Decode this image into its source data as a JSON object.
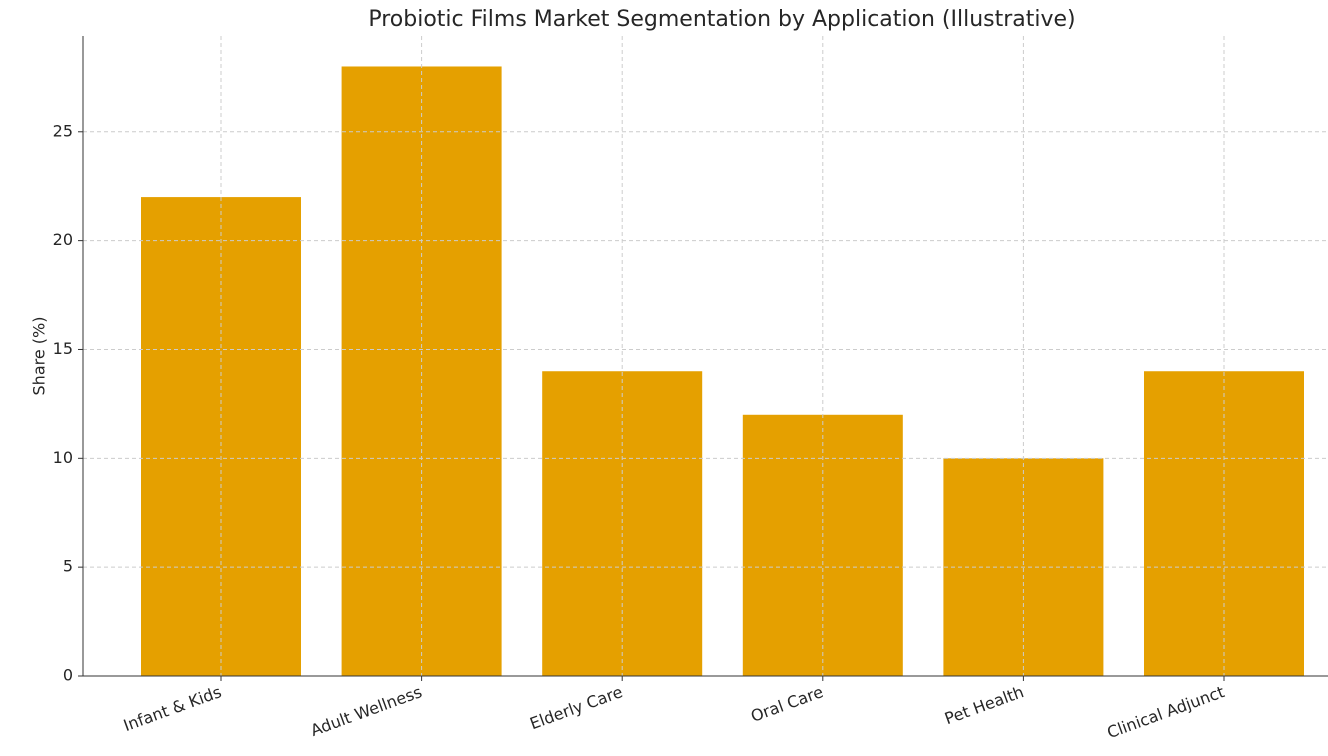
{
  "chart_data": {
    "type": "bar",
    "title": "Probiotic Films Market Segmentation by Application (Illustrative)",
    "y_label": "Share (%)",
    "categories": [
      "Infant & Kids",
      "Adult Wellness",
      "Elderly Care",
      "Oral Care",
      "Pet Health",
      "Clinical Adjunct"
    ],
    "values": [
      22,
      28,
      14,
      12,
      10,
      14
    ],
    "color": "#e5a000",
    "ylim": [
      0,
      29.4
    ],
    "yticks": [
      0,
      5,
      10,
      15,
      20,
      25
    ],
    "grid": true
  }
}
